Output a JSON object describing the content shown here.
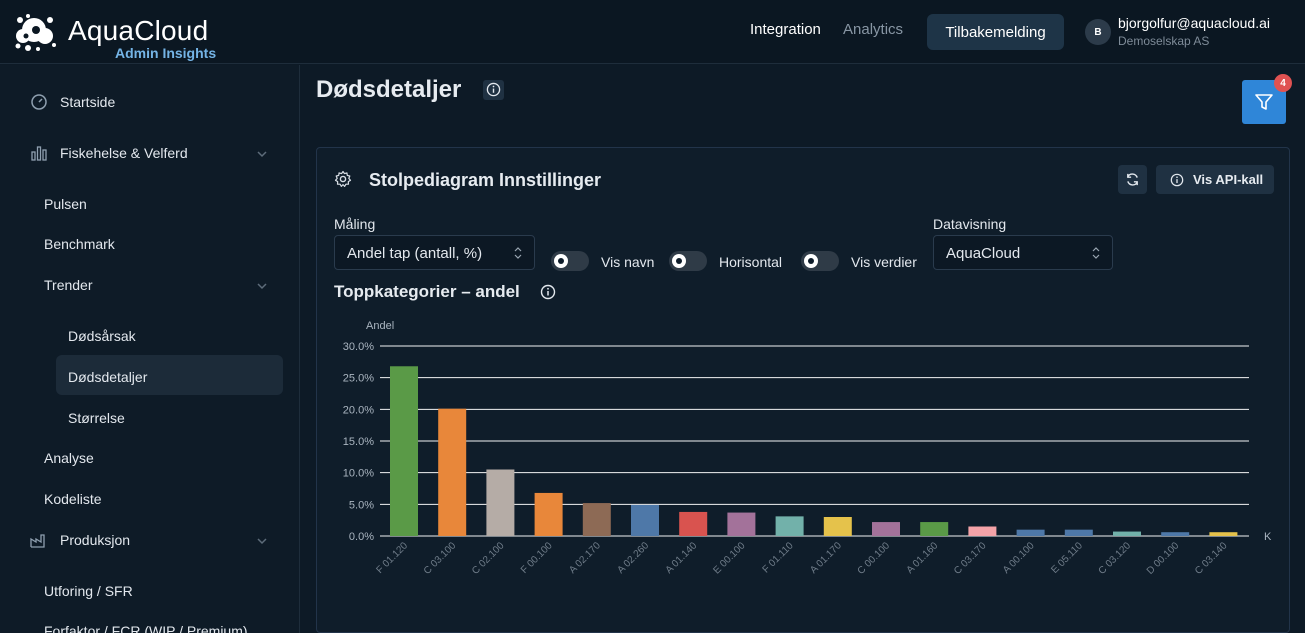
{
  "brand": {
    "name": "AquaCloud",
    "subtitle": "Admin Insights"
  },
  "header": {
    "nav": [
      {
        "label": "Integration",
        "active": true
      },
      {
        "label": "Analytics",
        "active": false
      }
    ],
    "feedback_label": "Tilbakemelding",
    "user": {
      "initial": "B",
      "email": "bjorgolfur@aquacloud.ai",
      "org": "Demoselskap AS"
    }
  },
  "sidebar": {
    "items": [
      {
        "label": "Startside",
        "icon": "gauge-icon"
      },
      {
        "label": "Fiskehelse & Velferd",
        "icon": "bar-chart-icon",
        "expanded": true
      },
      {
        "label": "Pulsen"
      },
      {
        "label": "Benchmark"
      },
      {
        "label": "Trender",
        "expanded": true
      },
      {
        "label": "Dødsårsak"
      },
      {
        "label": "Dødsdetaljer",
        "active": true
      },
      {
        "label": "Størrelse"
      },
      {
        "label": "Analyse"
      },
      {
        "label": "Kodeliste"
      },
      {
        "label": "Produksjon",
        "icon": "factory-icon",
        "expanded": true
      },
      {
        "label": "Utforing / SFR"
      },
      {
        "label": "Forfaktor / FCR (WIP / Premium)"
      }
    ]
  },
  "page": {
    "title": "Dødsdetaljer",
    "filter_badge": "4"
  },
  "settings": {
    "title": "Stolpediagram Innstillinger",
    "api_button": "Vis API-kall",
    "measure_label": "Måling",
    "measure_value": "Andel tap (antall, %)",
    "toggles": [
      {
        "label": "Vis navn",
        "on": false
      },
      {
        "label": "Horisontal",
        "on": false
      },
      {
        "label": "Vis verdier",
        "on": false
      }
    ],
    "dataview_label": "Datavisning",
    "dataview_value": "AquaCloud"
  },
  "chart_data": {
    "type": "bar",
    "title": "Toppkategorier – andel",
    "ylabel": "Andel",
    "xlabel": "K",
    "ylim": [
      0,
      30
    ],
    "yticks": [
      "0.0%",
      "5.0%",
      "10.0%",
      "15.0%",
      "20.0%",
      "25.0%",
      "30.0%"
    ],
    "categories": [
      "F 01.120",
      "C 03.100",
      "C 02.100",
      "F 00.100",
      "A 02.170",
      "A 02.260",
      "A 01.140",
      "E 00.100",
      "F 01.110",
      "A 01.170",
      "C 00.100",
      "A 01.160",
      "C 03.170",
      "A 00.100",
      "E 05.110",
      "C 03.120",
      "D 00.100",
      "C 03.140"
    ],
    "values": [
      26.8,
      20.1,
      10.5,
      6.8,
      5.2,
      4.9,
      3.8,
      3.7,
      3.1,
      3.0,
      2.2,
      2.2,
      1.5,
      1.0,
      1.0,
      0.7,
      0.6,
      0.6
    ],
    "colors": [
      "#5a9a47",
      "#e8873a",
      "#b5aca6",
      "#e8873a",
      "#8d6a55",
      "#4e78a8",
      "#d9534f",
      "#a3729a",
      "#72b1aa",
      "#e5c24b",
      "#a3729a",
      "#5a9a47",
      "#f4a3a8",
      "#4e78a8",
      "#4e78a8",
      "#72b1aa",
      "#4e78a8",
      "#e5c24b"
    ],
    "grid": true,
    "legend": "none"
  }
}
